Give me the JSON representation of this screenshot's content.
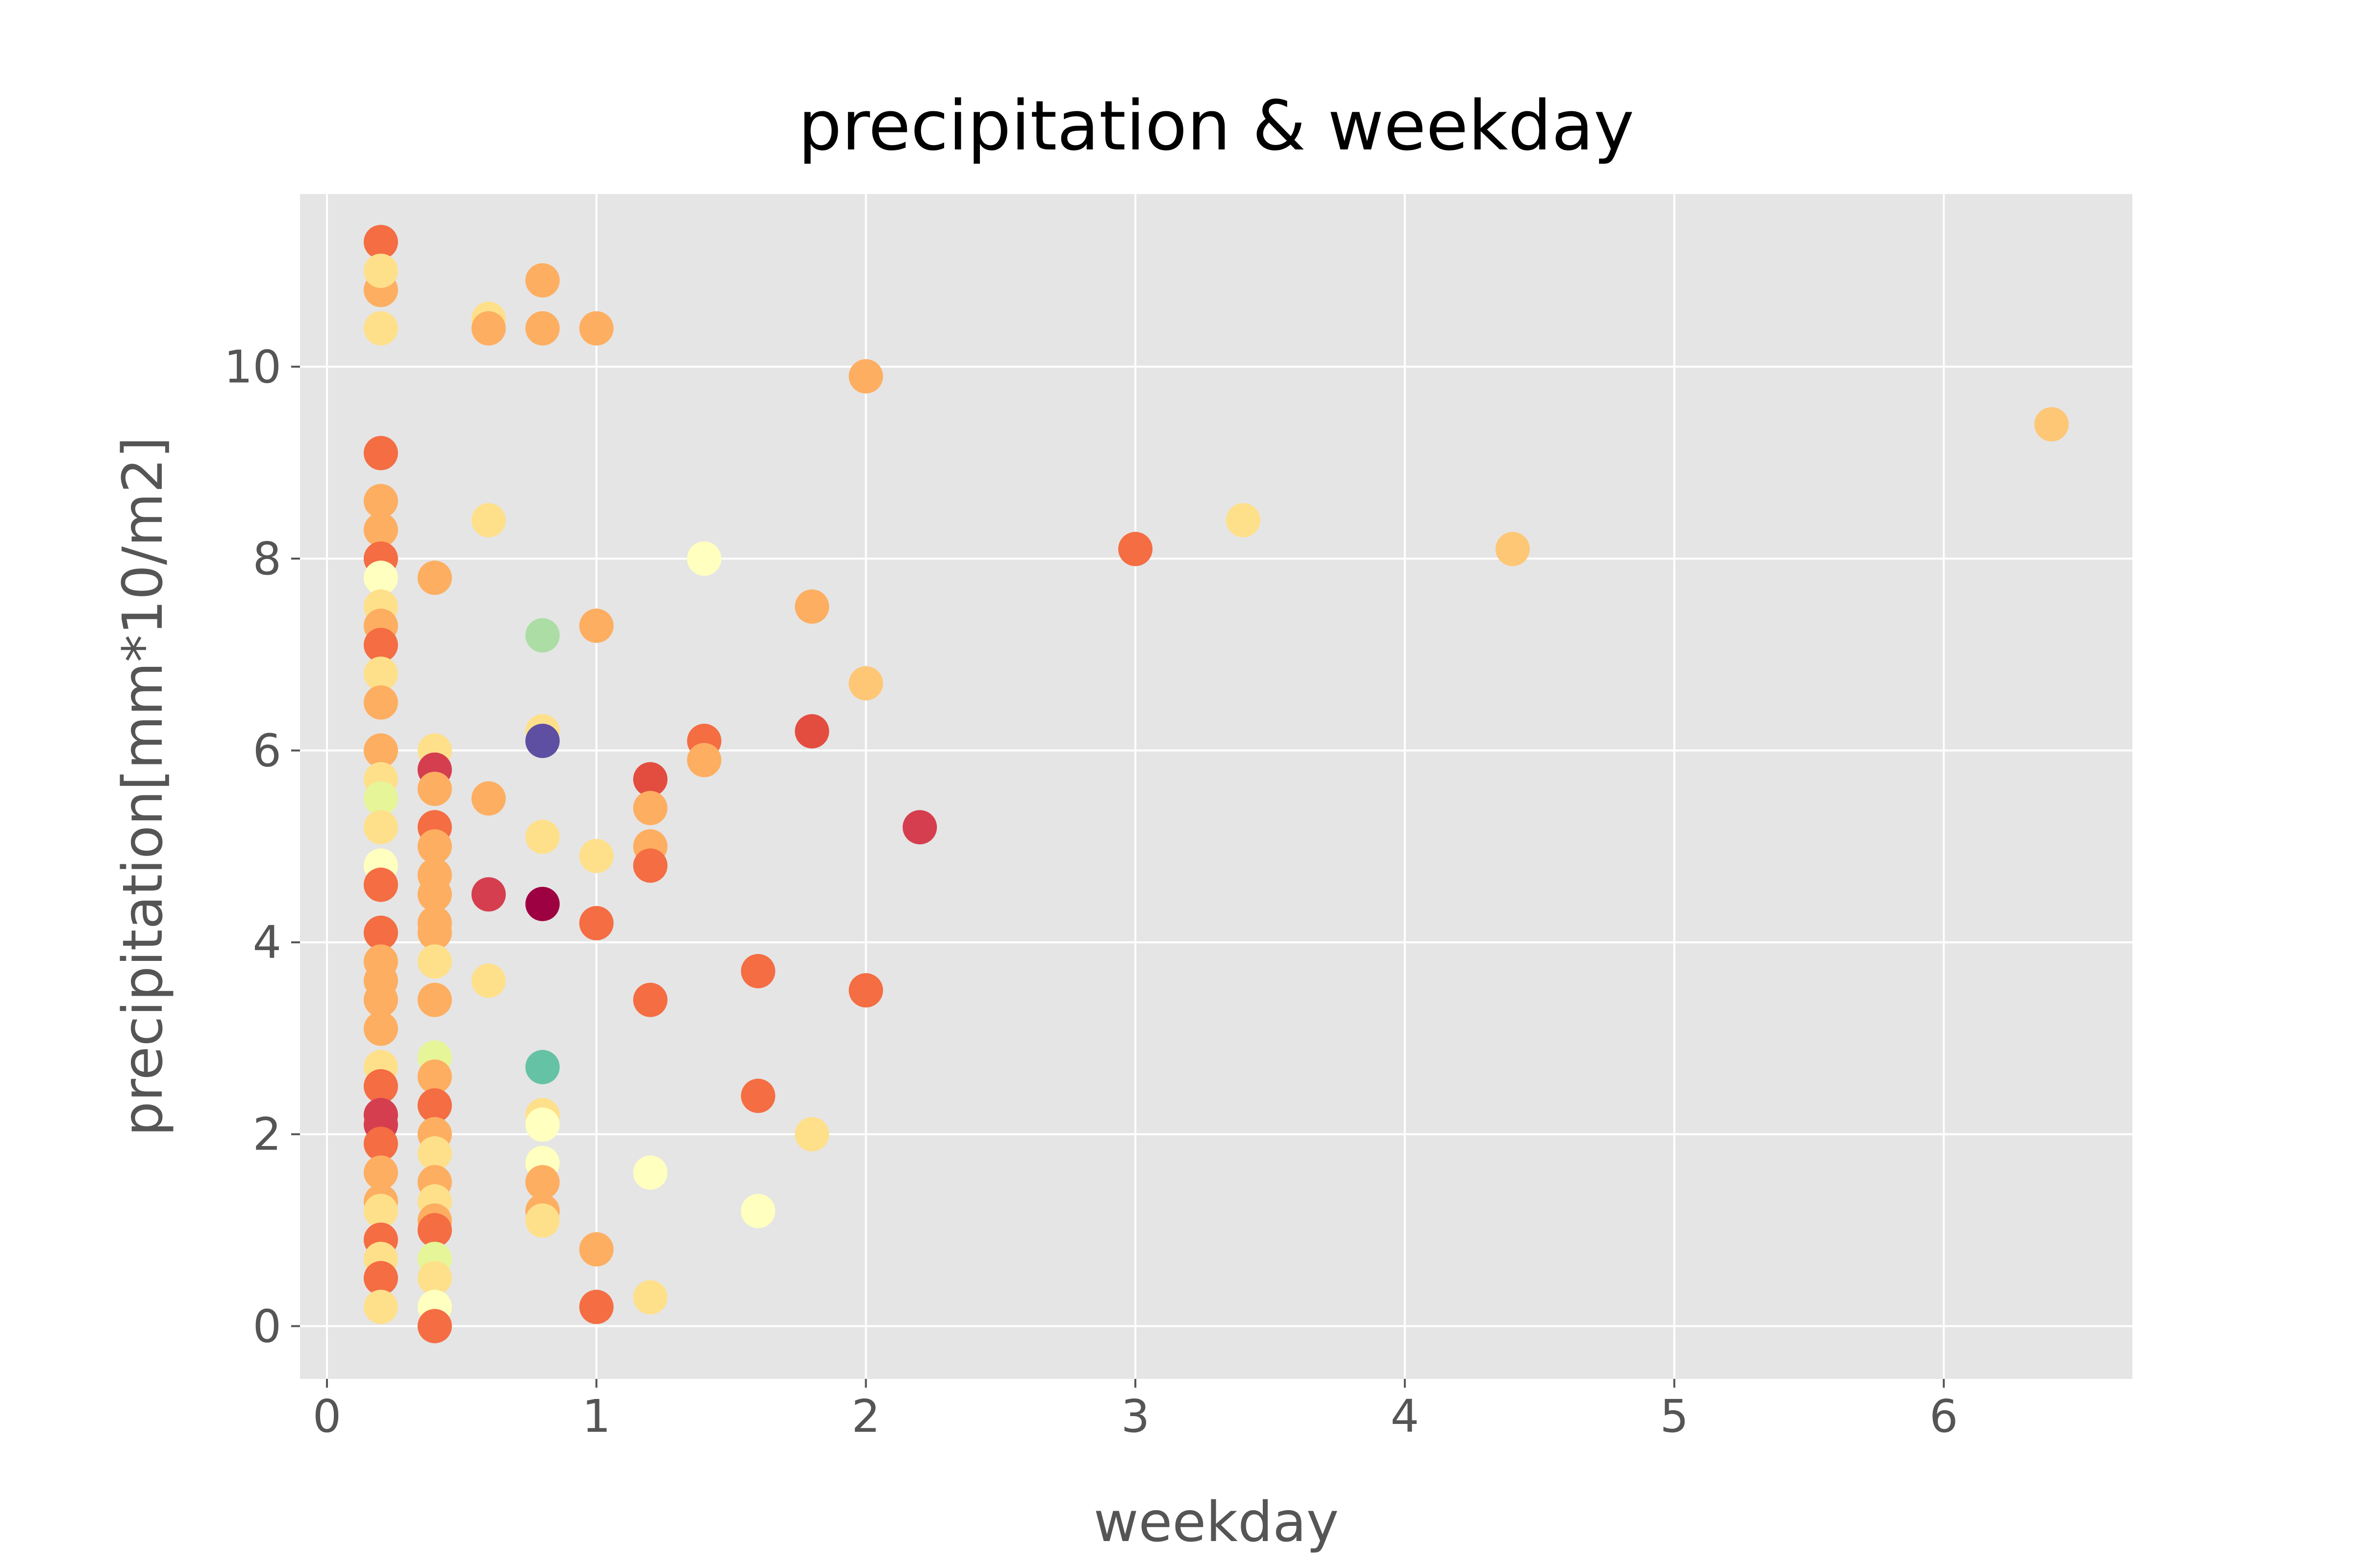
{
  "chart_data": {
    "type": "scatter",
    "title": "precipitation & weekday",
    "xlabel": "weekday",
    "ylabel": "precipitation[mm*10/m2]",
    "xlim": [
      -0.1,
      6.7
    ],
    "ylim": [
      -0.55,
      11.8
    ],
    "x_ticks": [
      "0",
      "1",
      "2",
      "3",
      "4",
      "5",
      "6"
    ],
    "y_ticks": [
      "0",
      "2",
      "4",
      "6",
      "8",
      "10"
    ],
    "grid": true,
    "background": "#e5e5e5",
    "grid_color": "#ffffff",
    "colormap": "Spectral",
    "points": [
      {
        "x": 0.2,
        "y": 11.3,
        "c": "#f46d43"
      },
      {
        "x": 0.2,
        "y": 10.8,
        "c": "#fdae61"
      },
      {
        "x": 0.2,
        "y": 11.0,
        "c": "#fee08b"
      },
      {
        "x": 0.2,
        "y": 10.4,
        "c": "#fee08b"
      },
      {
        "x": 0.2,
        "y": 9.1,
        "c": "#f46d43"
      },
      {
        "x": 0.2,
        "y": 8.6,
        "c": "#fdae61"
      },
      {
        "x": 0.2,
        "y": 8.3,
        "c": "#fdae61"
      },
      {
        "x": 0.2,
        "y": 8.0,
        "c": "#f46d43"
      },
      {
        "x": 0.2,
        "y": 7.8,
        "c": "#ffffbf"
      },
      {
        "x": 0.2,
        "y": 7.5,
        "c": "#fee08b"
      },
      {
        "x": 0.2,
        "y": 7.3,
        "c": "#fdae61"
      },
      {
        "x": 0.2,
        "y": 7.1,
        "c": "#f46d43"
      },
      {
        "x": 0.2,
        "y": 6.8,
        "c": "#fee08b"
      },
      {
        "x": 0.2,
        "y": 6.5,
        "c": "#fdae61"
      },
      {
        "x": 0.2,
        "y": 6.0,
        "c": "#fdae61"
      },
      {
        "x": 0.2,
        "y": 5.7,
        "c": "#fee08b"
      },
      {
        "x": 0.2,
        "y": 5.5,
        "c": "#e6f598"
      },
      {
        "x": 0.2,
        "y": 5.2,
        "c": "#fee08b"
      },
      {
        "x": 0.2,
        "y": 4.8,
        "c": "#ffffbf"
      },
      {
        "x": 0.2,
        "y": 4.6,
        "c": "#f46d43"
      },
      {
        "x": 0.2,
        "y": 4.1,
        "c": "#f46d43"
      },
      {
        "x": 0.2,
        "y": 3.8,
        "c": "#fdae61"
      },
      {
        "x": 0.2,
        "y": 3.6,
        "c": "#fdae61"
      },
      {
        "x": 0.2,
        "y": 3.4,
        "c": "#fdae61"
      },
      {
        "x": 0.2,
        "y": 3.1,
        "c": "#fdae61"
      },
      {
        "x": 0.2,
        "y": 2.7,
        "c": "#fee08b"
      },
      {
        "x": 0.2,
        "y": 2.5,
        "c": "#f46d43"
      },
      {
        "x": 0.2,
        "y": 2.2,
        "c": "#d53e4f"
      },
      {
        "x": 0.2,
        "y": 2.1,
        "c": "#d53e4f"
      },
      {
        "x": 0.2,
        "y": 1.9,
        "c": "#f46d43"
      },
      {
        "x": 0.2,
        "y": 1.6,
        "c": "#fdae61"
      },
      {
        "x": 0.2,
        "y": 1.3,
        "c": "#fdae61"
      },
      {
        "x": 0.2,
        "y": 1.2,
        "c": "#fee08b"
      },
      {
        "x": 0.2,
        "y": 0.9,
        "c": "#f46d43"
      },
      {
        "x": 0.2,
        "y": 0.7,
        "c": "#fee08b"
      },
      {
        "x": 0.2,
        "y": 0.5,
        "c": "#f46d43"
      },
      {
        "x": 0.2,
        "y": 0.2,
        "c": "#fee08b"
      },
      {
        "x": 0.4,
        "y": 7.8,
        "c": "#fdae61"
      },
      {
        "x": 0.4,
        "y": 6.0,
        "c": "#fee08b"
      },
      {
        "x": 0.4,
        "y": 5.8,
        "c": "#d53e4f"
      },
      {
        "x": 0.4,
        "y": 5.6,
        "c": "#fdae61"
      },
      {
        "x": 0.4,
        "y": 5.2,
        "c": "#f46d43"
      },
      {
        "x": 0.4,
        "y": 5.0,
        "c": "#fdae61"
      },
      {
        "x": 0.4,
        "y": 4.7,
        "c": "#fdae61"
      },
      {
        "x": 0.4,
        "y": 4.5,
        "c": "#fdae61"
      },
      {
        "x": 0.4,
        "y": 4.2,
        "c": "#fdae61"
      },
      {
        "x": 0.4,
        "y": 4.1,
        "c": "#fdae61"
      },
      {
        "x": 0.4,
        "y": 3.8,
        "c": "#fee08b"
      },
      {
        "x": 0.4,
        "y": 3.4,
        "c": "#fdae61"
      },
      {
        "x": 0.4,
        "y": 2.8,
        "c": "#e6f598"
      },
      {
        "x": 0.4,
        "y": 2.6,
        "c": "#fdae61"
      },
      {
        "x": 0.4,
        "y": 2.3,
        "c": "#f46d43"
      },
      {
        "x": 0.4,
        "y": 2.0,
        "c": "#fdae61"
      },
      {
        "x": 0.4,
        "y": 1.8,
        "c": "#fee08b"
      },
      {
        "x": 0.4,
        "y": 1.5,
        "c": "#fdae61"
      },
      {
        "x": 0.4,
        "y": 1.3,
        "c": "#fee08b"
      },
      {
        "x": 0.4,
        "y": 1.1,
        "c": "#fdae61"
      },
      {
        "x": 0.4,
        "y": 1.0,
        "c": "#f46d43"
      },
      {
        "x": 0.4,
        "y": 0.7,
        "c": "#e6f598"
      },
      {
        "x": 0.4,
        "y": 0.5,
        "c": "#fee08b"
      },
      {
        "x": 0.4,
        "y": 0.2,
        "c": "#ffffbf"
      },
      {
        "x": 0.4,
        "y": 0.0,
        "c": "#f46d43"
      },
      {
        "x": 0.6,
        "y": 10.5,
        "c": "#fee08b"
      },
      {
        "x": 0.6,
        "y": 10.4,
        "c": "#fdae61"
      },
      {
        "x": 0.6,
        "y": 8.4,
        "c": "#fee08b"
      },
      {
        "x": 0.6,
        "y": 5.5,
        "c": "#fdae61"
      },
      {
        "x": 0.6,
        "y": 4.5,
        "c": "#d53e4f"
      },
      {
        "x": 0.6,
        "y": 3.6,
        "c": "#fee08b"
      },
      {
        "x": 0.8,
        "y": 10.9,
        "c": "#fdae61"
      },
      {
        "x": 0.8,
        "y": 10.4,
        "c": "#fdae61"
      },
      {
        "x": 0.8,
        "y": 7.2,
        "c": "#abdda4"
      },
      {
        "x": 0.8,
        "y": 6.2,
        "c": "#fee08b"
      },
      {
        "x": 0.8,
        "y": 6.1,
        "c": "#5e4fa2"
      },
      {
        "x": 0.8,
        "y": 5.1,
        "c": "#fee08b"
      },
      {
        "x": 0.8,
        "y": 4.4,
        "c": "#9e0142"
      },
      {
        "x": 0.8,
        "y": 2.7,
        "c": "#66c2a5"
      },
      {
        "x": 0.8,
        "y": 2.2,
        "c": "#fee08b"
      },
      {
        "x": 0.8,
        "y": 2.1,
        "c": "#ffffbf"
      },
      {
        "x": 0.8,
        "y": 1.7,
        "c": "#ffffbf"
      },
      {
        "x": 0.8,
        "y": 1.5,
        "c": "#fdae61"
      },
      {
        "x": 0.8,
        "y": 1.2,
        "c": "#fdae61"
      },
      {
        "x": 0.8,
        "y": 1.1,
        "c": "#fee08b"
      },
      {
        "x": 1.0,
        "y": 10.4,
        "c": "#fdae61"
      },
      {
        "x": 1.0,
        "y": 7.3,
        "c": "#fdae61"
      },
      {
        "x": 1.0,
        "y": 4.9,
        "c": "#fee08b"
      },
      {
        "x": 1.0,
        "y": 4.2,
        "c": "#f46d43"
      },
      {
        "x": 1.0,
        "y": 0.8,
        "c": "#fdae61"
      },
      {
        "x": 1.0,
        "y": 0.2,
        "c": "#f46d43"
      },
      {
        "x": 1.2,
        "y": 5.7,
        "c": "#e34d3f"
      },
      {
        "x": 1.2,
        "y": 5.4,
        "c": "#fdae61"
      },
      {
        "x": 1.2,
        "y": 5.0,
        "c": "#fdae61"
      },
      {
        "x": 1.2,
        "y": 4.8,
        "c": "#f46d43"
      },
      {
        "x": 1.2,
        "y": 3.4,
        "c": "#f46d43"
      },
      {
        "x": 1.2,
        "y": 1.6,
        "c": "#ffffbf"
      },
      {
        "x": 1.2,
        "y": 0.3,
        "c": "#fee08b"
      },
      {
        "x": 1.4,
        "y": 8.0,
        "c": "#ffffbf"
      },
      {
        "x": 1.4,
        "y": 6.1,
        "c": "#f46d43"
      },
      {
        "x": 1.4,
        "y": 5.9,
        "c": "#fdae61"
      },
      {
        "x": 1.6,
        "y": 3.7,
        "c": "#f46d43"
      },
      {
        "x": 1.6,
        "y": 2.4,
        "c": "#f46d43"
      },
      {
        "x": 1.6,
        "y": 1.2,
        "c": "#ffffbf"
      },
      {
        "x": 1.8,
        "y": 7.5,
        "c": "#fdae61"
      },
      {
        "x": 1.8,
        "y": 6.2,
        "c": "#e34d3f"
      },
      {
        "x": 1.8,
        "y": 2.0,
        "c": "#fee08b"
      },
      {
        "x": 2.0,
        "y": 9.9,
        "c": "#fdae61"
      },
      {
        "x": 2.0,
        "y": 6.7,
        "c": "#fdc776"
      },
      {
        "x": 2.0,
        "y": 3.5,
        "c": "#f46d43"
      },
      {
        "x": 2.2,
        "y": 5.2,
        "c": "#d53e4f"
      },
      {
        "x": 3.0,
        "y": 8.1,
        "c": "#f46d43"
      },
      {
        "x": 3.4,
        "y": 8.4,
        "c": "#fee08b"
      },
      {
        "x": 4.4,
        "y": 8.1,
        "c": "#fdc776"
      },
      {
        "x": 6.4,
        "y": 9.4,
        "c": "#fdc776"
      }
    ]
  }
}
